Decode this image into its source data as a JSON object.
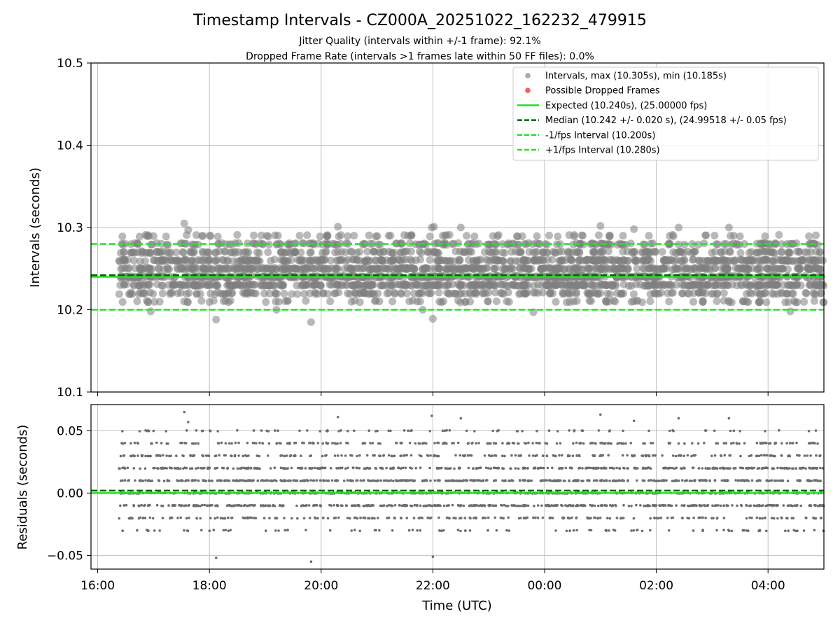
{
  "chart_data": {
    "type": "scatter",
    "title": "Timestamp Intervals - CZ000A_20251022_162232_479915",
    "subtitle_lines": [
      "Jitter Quality (intervals within +/-1 frame): 92.1%",
      "Dropped Frame Rate (intervals >1 frames late within 50 FF files): 0.0%"
    ],
    "xlabel": "Time (UTC)",
    "x_unit": "hours since 16:00 UTC",
    "xlim": [
      -0.12,
      13.0
    ],
    "x_ticks": [
      0,
      2,
      4,
      6,
      8,
      10,
      12
    ],
    "x_tick_labels": [
      "16:00",
      "18:00",
      "20:00",
      "22:00",
      "00:00",
      "02:00",
      "04:00"
    ],
    "data_x_range": [
      0.38,
      13.0
    ],
    "panels": [
      {
        "name": "intervals",
        "ylabel": "Intervals (seconds)",
        "ylim": [
          10.1,
          10.5
        ],
        "y_ticks": [
          10.1,
          10.2,
          10.3,
          10.4,
          10.5
        ],
        "y_tick_labels": [
          "10.1",
          "10.2",
          "10.3",
          "10.4",
          "10.5"
        ],
        "grid": true,
        "lines": [
          {
            "name": "Expected",
            "y": 10.24,
            "style": "solid",
            "color": "#22e422"
          },
          {
            "name": "Median",
            "y": 10.242,
            "style": "dashed",
            "color": "#006400"
          },
          {
            "name": "-1/fps Interval",
            "y": 10.2,
            "style": "dashed",
            "color": "#22e422"
          },
          {
            "name": "+1/fps Interval",
            "y": 10.28,
            "style": "dashed",
            "color": "#22e422"
          }
        ],
        "series": [
          {
            "name": "Intervals",
            "color": "#808080",
            "band_levels": [
              10.21,
              10.22,
              10.23,
              10.24,
              10.25,
              10.26,
              10.27,
              10.28,
              10.29
            ],
            "band_weights": [
              3,
              8,
              14,
              17,
              16,
              13,
              9,
              6,
              3
            ],
            "outliers": [
              {
                "x": 1.55,
                "y": 10.305
              },
              {
                "x": 1.62,
                "y": 10.297
              },
              {
                "x": 2.12,
                "y": 10.188
              },
              {
                "x": 3.2,
                "y": 10.2
              },
              {
                "x": 3.82,
                "y": 10.185
              },
              {
                "x": 4.3,
                "y": 10.301
              },
              {
                "x": 5.82,
                "y": 10.2
              },
              {
                "x": 5.98,
                "y": 10.3
              },
              {
                "x": 6.02,
                "y": 10.301
              },
              {
                "x": 6.0,
                "y": 10.189
              },
              {
                "x": 6.5,
                "y": 10.3
              },
              {
                "x": 9.0,
                "y": 10.302
              },
              {
                "x": 9.6,
                "y": 10.298
              },
              {
                "x": 10.4,
                "y": 10.3
              },
              {
                "x": 12.4,
                "y": 10.198
              },
              {
                "x": 0.95,
                "y": 10.198
              },
              {
                "x": 7.8,
                "y": 10.197
              },
              {
                "x": 11.3,
                "y": 10.3
              }
            ]
          },
          {
            "name": "Possible Dropped Frames",
            "color": "#f06060",
            "count": 0
          }
        ],
        "legend": {
          "position": "top-right",
          "entries": [
            {
              "label": "Intervals, max (10.305s), min (10.185s)",
              "kind": "marker",
              "color": "#a8a8a8"
            },
            {
              "label": "Possible Dropped Frames",
              "kind": "marker",
              "color": "#f06060"
            },
            {
              "label": "Expected (10.240s), (25.00000 fps)",
              "kind": "solid",
              "color": "#22e422"
            },
            {
              "label": "Median (10.242 +/- 0.020 s), (24.99518 +/- 0.05 fps)",
              "kind": "dashed",
              "color": "#006400"
            },
            {
              "label": "-1/fps Interval (10.200s)",
              "kind": "dashed",
              "color": "#22e422"
            },
            {
              "label": "+1/fps Interval (10.280s)",
              "kind": "dashed",
              "color": "#22e422"
            }
          ]
        }
      },
      {
        "name": "residuals",
        "ylabel": "Residuals (seconds)",
        "ylim": [
          -0.061,
          0.071
        ],
        "y_ticks": [
          -0.05,
          0.0,
          0.05
        ],
        "y_tick_labels": [
          "−0.05",
          "0.00",
          "0.05"
        ],
        "grid": true,
        "lines": [
          {
            "name": "Expected",
            "y": 0.0,
            "style": "solid",
            "color": "#22e422"
          },
          {
            "name": "Median",
            "y": 0.002,
            "style": "dashed",
            "color": "#006400"
          }
        ],
        "series": [
          {
            "name": "Residuals",
            "color": "#707070",
            "band_levels": [
              -0.03,
              -0.02,
              -0.01,
              0.0,
              0.01,
              0.02,
              0.03,
              0.04,
              0.05
            ],
            "band_weights": [
              3,
              8,
              14,
              17,
              16,
              13,
              9,
              6,
              3
            ],
            "outliers": [
              {
                "x": 1.55,
                "y": 0.065
              },
              {
                "x": 1.62,
                "y": 0.057
              },
              {
                "x": 2.12,
                "y": -0.052
              },
              {
                "x": 3.82,
                "y": -0.055
              },
              {
                "x": 4.3,
                "y": 0.061
              },
              {
                "x": 5.98,
                "y": 0.062
              },
              {
                "x": 6.0,
                "y": -0.051
              },
              {
                "x": 6.5,
                "y": 0.06
              },
              {
                "x": 9.0,
                "y": 0.063
              },
              {
                "x": 9.6,
                "y": 0.058
              },
              {
                "x": 10.4,
                "y": 0.06
              },
              {
                "x": 11.3,
                "y": 0.06
              }
            ]
          }
        ]
      }
    ]
  }
}
